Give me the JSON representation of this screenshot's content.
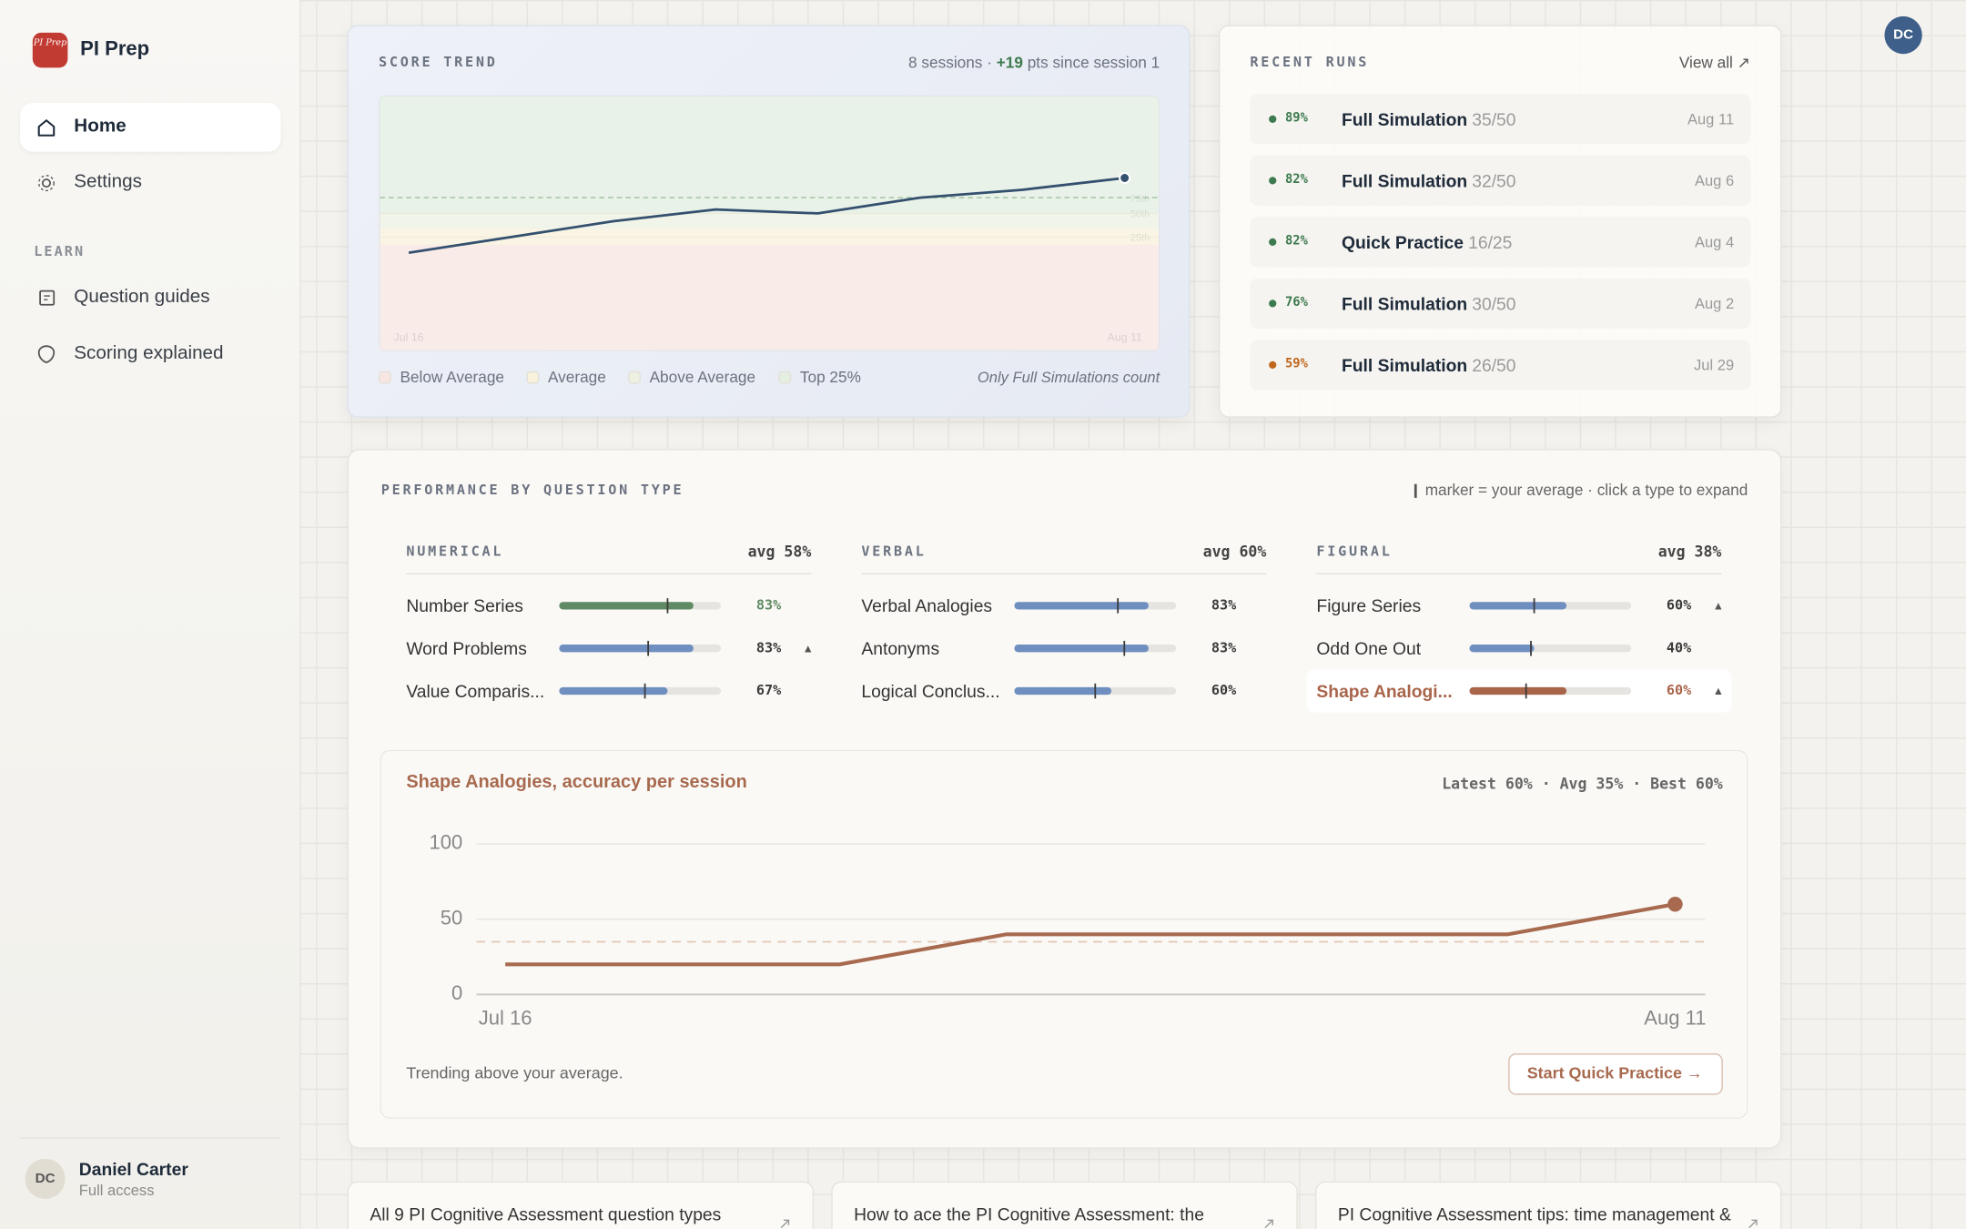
{
  "sidebar": {
    "logo": "PI Prep",
    "brand": "PI Prep",
    "nav": [
      {
        "label": "Home"
      },
      {
        "label": "Settings"
      }
    ],
    "section": "LEARN",
    "learn": [
      {
        "label": "Question guides"
      },
      {
        "label": "Scoring explained"
      }
    ],
    "user": {
      "initials": "DC",
      "name": "Daniel Carter",
      "plan": "Full access"
    }
  },
  "avatar": "DC",
  "score_trend": {
    "type": "line",
    "title": "SCORE TREND",
    "summary": [
      "8 sessions · ",
      "+19",
      " pts since session 1"
    ],
    "categories": [
      "Jul 16",
      null,
      null,
      null,
      null,
      null,
      null,
      "Aug 11"
    ],
    "values": [
      70,
      74,
      78,
      81,
      80,
      84,
      86,
      89
    ],
    "color": "#34506f",
    "ylim": [
      45,
      110
    ],
    "bands": [
      {
        "name": "Below Average",
        "color": "#f8e6e2",
        "from": 45,
        "to": 72
      },
      {
        "name": "Average",
        "color": "#f8f1dc",
        "from": 72,
        "to": 76
      },
      {
        "name": "Above Average",
        "color": "#eef1e2",
        "from": 76,
        "to": 80
      },
      {
        "name": "Top 25%",
        "color": "#e4efe2",
        "from": 80,
        "to": 110
      }
    ],
    "percentiles": [
      {
        "label": "75th",
        "value": 84,
        "dashed": true
      },
      {
        "label": "50th",
        "value": 80
      },
      {
        "label": "25th",
        "value": 74
      }
    ],
    "note": "Only Full Simulations count"
  },
  "recent": {
    "title": "RECENT RUNS",
    "link": "View all ↗",
    "runs": [
      {
        "pct": "89%",
        "name": "Full Simulation",
        "score": "35/50",
        "date": "Aug 11",
        "color": "#3d7a4f"
      },
      {
        "pct": "82%",
        "name": "Full Simulation",
        "score": "32/50",
        "date": "Aug 6",
        "color": "#3d7a4f"
      },
      {
        "pct": "82%",
        "name": "Quick Practice",
        "score": "16/25",
        "date": "Aug 4",
        "color": "#3d7a4f"
      },
      {
        "pct": "76%",
        "name": "Full Simulation",
        "score": "30/50",
        "date": "Aug 2",
        "color": "#3d7a4f"
      },
      {
        "pct": "59%",
        "name": "Full Simulation",
        "score": "26/50",
        "date": "Jul 29",
        "color": "#c0671d"
      }
    ]
  },
  "performance": {
    "title": "PERFORMANCE BY QUESTION TYPE",
    "note": "marker = your average · click a type to expand",
    "groups": [
      {
        "name": "NUMERICAL",
        "avg": "avg 58%",
        "items": [
          {
            "name": "Number Series",
            "value": 83,
            "value_label": "83%",
            "marker": 67,
            "color": "#5f8a63"
          },
          {
            "name": "Word Problems",
            "value": 83,
            "value_label": "83%",
            "marker": 55,
            "color": "#6f8fc0",
            "trend": "▲"
          },
          {
            "name": "Value Comparis...",
            "value": 67,
            "value_label": "67%",
            "marker": 53,
            "color": "#6f8fc0"
          }
        ]
      },
      {
        "name": "VERBAL",
        "avg": "avg 60%",
        "items": [
          {
            "name": "Verbal Analogies",
            "value": 83,
            "value_label": "83%",
            "marker": 64,
            "color": "#6f8fc0"
          },
          {
            "name": "Antonyms",
            "value": 83,
            "value_label": "83%",
            "marker": 68,
            "color": "#6f8fc0"
          },
          {
            "name": "Logical Conclus...",
            "value": 60,
            "value_label": "60%",
            "marker": 50,
            "color": "#6f8fc0"
          }
        ]
      },
      {
        "name": "FIGURAL",
        "avg": "avg 38%",
        "items": [
          {
            "name": "Figure Series",
            "value": 60,
            "value_label": "60%",
            "marker": 40,
            "color": "#6f8fc0",
            "trend": "▲"
          },
          {
            "name": "Odd One Out",
            "value": 40,
            "value_label": "40%",
            "marker": 38,
            "color": "#6f8fc0"
          },
          {
            "name": "Shape Analogi...",
            "value": 60,
            "value_label": "60%",
            "marker": 35,
            "color": "#a8654a",
            "trend": "▲",
            "selected": true
          }
        ]
      }
    ],
    "detail": {
      "type": "line",
      "title": "Shape Analogies, accuracy per session",
      "stats": "Latest 60% · Avg 35% · Best 60%",
      "categories": [
        "Jul 16",
        null,
        null,
        null,
        null,
        null,
        null,
        "Aug 11"
      ],
      "values": [
        20,
        20,
        20,
        40,
        40,
        40,
        40,
        60
      ],
      "color": "#a86a4f",
      "ylim": [
        0,
        100
      ],
      "yticks": [
        0,
        50,
        100
      ],
      "average": 35,
      "note": "Trending above your average.",
      "button": "Start Quick Practice →"
    }
  },
  "articles": [
    "All 9 PI Cognitive Assessment question types",
    "How to ace the PI Cognitive Assessment: the",
    "PI Cognitive Assessment tips: time management &"
  ]
}
